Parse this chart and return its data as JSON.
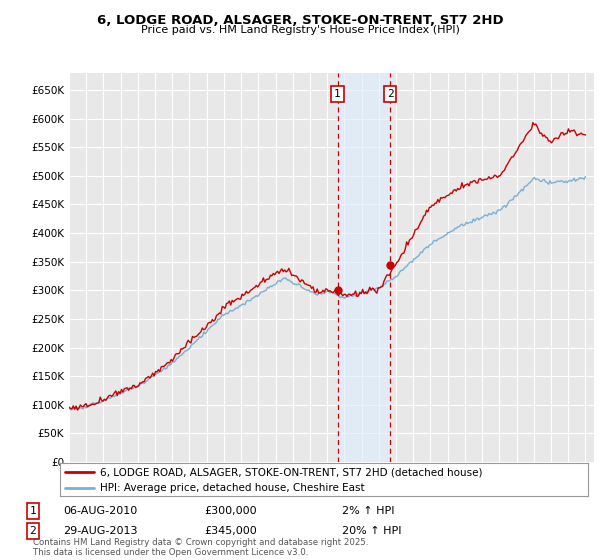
{
  "title": "6, LODGE ROAD, ALSAGER, STOKE-ON-TRENT, ST7 2HD",
  "subtitle": "Price paid vs. HM Land Registry's House Price Index (HPI)",
  "yticks": [
    0,
    50000,
    100000,
    150000,
    200000,
    250000,
    300000,
    350000,
    400000,
    450000,
    500000,
    550000,
    600000,
    650000
  ],
  "ytick_labels": [
    "£0",
    "£50K",
    "£100K",
    "£150K",
    "£200K",
    "£250K",
    "£300K",
    "£350K",
    "£400K",
    "£450K",
    "£500K",
    "£550K",
    "£600K",
    "£650K"
  ],
  "ylim": [
    0,
    680000
  ],
  "xlim_start": 1995.0,
  "xlim_end": 2025.5,
  "background_color": "#ffffff",
  "plot_bg_color": "#e8e8e8",
  "grid_color": "#ffffff",
  "line1_color": "#cc0000",
  "line2_color": "#7bafd4",
  "transaction1_x": 2010.6,
  "transaction1_y": 300000,
  "transaction2_x": 2013.66,
  "transaction2_y": 345000,
  "legend_line1": "6, LODGE ROAD, ALSAGER, STOKE-ON-TRENT, ST7 2HD (detached house)",
  "legend_line2": "HPI: Average price, detached house, Cheshire East",
  "transaction1_date": "06-AUG-2010",
  "transaction1_price": "£300,000",
  "transaction1_hpi": "2% ↑ HPI",
  "transaction2_date": "29-AUG-2013",
  "transaction2_price": "£345,000",
  "transaction2_hpi": "20% ↑ HPI",
  "marker_box_color": "#cc0000",
  "footer": "Contains HM Land Registry data © Crown copyright and database right 2025.\nThis data is licensed under the Open Government Licence v3.0.",
  "span_color": "#ddeeff",
  "span_alpha": 0.6
}
